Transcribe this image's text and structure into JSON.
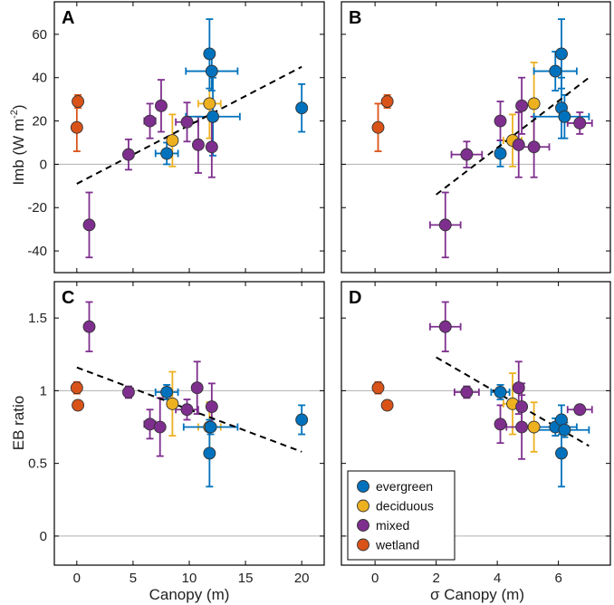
{
  "colors": {
    "evergreen": "#0072BD",
    "deciduous": "#EDB120",
    "mixed": "#7E2F8E",
    "wetland": "#D95319",
    "fit": "#000000",
    "ref": "#b0b0b0"
  },
  "legend": {
    "placement": "bottom-left of panel D",
    "entries": [
      {
        "key": "evergreen",
        "label": "evergreen"
      },
      {
        "key": "deciduous",
        "label": "deciduous"
      },
      {
        "key": "mixed",
        "label": "mixed"
      },
      {
        "key": "wetland",
        "label": "wetland"
      }
    ]
  },
  "chart_data": [
    {
      "panel": "A",
      "type": "scatter",
      "xlim": [
        -2,
        22
      ],
      "ylim": [
        -50,
        75
      ],
      "xticks": [
        0,
        5,
        10,
        15,
        20
      ],
      "yticks": [
        -40,
        -20,
        0,
        20,
        40,
        60
      ],
      "ytick_labels": [
        "-40",
        "-20",
        "0",
        "20",
        "40",
        "60"
      ],
      "xlabel": "",
      "ylabel_main": "Imb (W m",
      "ylabel_sup": "-2",
      "ylabel_end": ")",
      "ref_line": 0,
      "fit_line": [
        [
          0,
          -9
        ],
        [
          20,
          45
        ]
      ],
      "points": [
        {
          "group": "wetland",
          "x": 0.1,
          "y": 29,
          "yerr": [
            3,
            3
          ]
        },
        {
          "group": "wetland",
          "x": 0.0,
          "y": 17,
          "yerr": [
            11,
            11
          ]
        },
        {
          "group": "mixed",
          "x": 1.1,
          "y": -28,
          "yerr": [
            15,
            15
          ]
        },
        {
          "group": "mixed",
          "x": 4.6,
          "y": 4.5,
          "yerr": [
            7,
            7
          ]
        },
        {
          "group": "mixed",
          "x": 6.5,
          "y": 20,
          "yerr": [
            8,
            8
          ],
          "xerr": [
            0.5,
            0.5
          ]
        },
        {
          "group": "mixed",
          "x": 7.5,
          "y": 27,
          "yerr": [
            12,
            12
          ]
        },
        {
          "group": "evergreen",
          "x": 8.0,
          "y": 5,
          "yerr": [
            5,
            5
          ],
          "xerr": [
            1,
            1
          ]
        },
        {
          "group": "deciduous",
          "x": 8.5,
          "y": 11,
          "yerr": [
            12,
            12
          ]
        },
        {
          "group": "mixed",
          "x": 9.8,
          "y": 19.5,
          "yerr": [
            9,
            9
          ],
          "xerr": [
            1,
            1
          ]
        },
        {
          "group": "mixed",
          "x": 10.8,
          "y": 9,
          "yerr": [
            13,
            13
          ]
        },
        {
          "group": "deciduous",
          "x": 11.8,
          "y": 28,
          "yerr": [
            16,
            16
          ],
          "xerr": [
            1,
            1
          ]
        },
        {
          "group": "evergreen",
          "x": 11.8,
          "y": 51,
          "yerr": [
            16,
            16
          ]
        },
        {
          "group": "evergreen",
          "x": 12.0,
          "y": 43,
          "yerr": [
            9,
            9
          ],
          "xerr": [
            2.3,
            2.3
          ]
        },
        {
          "group": "evergreen",
          "x": 12.1,
          "y": 22,
          "yerr": [
            18,
            18
          ],
          "xerr": [
            2.4,
            2.4
          ]
        },
        {
          "group": "mixed",
          "x": 12.0,
          "y": 8,
          "yerr": [
            14,
            14
          ]
        },
        {
          "group": "evergreen",
          "x": 20.0,
          "y": 26,
          "yerr": [
            11,
            11
          ]
        }
      ]
    },
    {
      "panel": "B",
      "type": "scatter",
      "xlim": [
        -1.1,
        7.7
      ],
      "ylim": [
        -50,
        75
      ],
      "xticks": [
        0,
        2,
        4,
        6
      ],
      "yticks": [
        -40,
        -20,
        0,
        20,
        40,
        60
      ],
      "ytick_labels": [],
      "xlabel": "",
      "ylabel_main": "",
      "ref_line": 0,
      "fit_line": [
        [
          2,
          -14
        ],
        [
          7,
          40
        ]
      ],
      "points": [
        {
          "group": "wetland",
          "x": 0.4,
          "y": 29,
          "yerr": [
            3,
            3
          ]
        },
        {
          "group": "wetland",
          "x": 0.1,
          "y": 17,
          "yerr": [
            11,
            11
          ]
        },
        {
          "group": "mixed",
          "x": 2.3,
          "y": -28,
          "yerr": [
            15,
            15
          ],
          "xerr": [
            0.5,
            0.5
          ]
        },
        {
          "group": "mixed",
          "x": 3.0,
          "y": 4.5,
          "yerr": [
            6,
            6
          ],
          "xerr": [
            0.5,
            0.5
          ]
        },
        {
          "group": "evergreen",
          "x": 4.1,
          "y": 5,
          "yerr": [
            6,
            6
          ]
        },
        {
          "group": "mixed",
          "x": 4.1,
          "y": 20,
          "yerr": [
            9,
            9
          ]
        },
        {
          "group": "deciduous",
          "x": 4.5,
          "y": 11,
          "yerr": [
            12,
            12
          ],
          "xerr": [
            0.3,
            0.3
          ]
        },
        {
          "group": "mixed",
          "x": 4.7,
          "y": 9,
          "yerr": [
            15,
            15
          ]
        },
        {
          "group": "mixed",
          "x": 4.8,
          "y": 27,
          "yerr": [
            13,
            13
          ]
        },
        {
          "group": "deciduous",
          "x": 5.2,
          "y": 28,
          "yerr": [
            19,
            19
          ]
        },
        {
          "group": "mixed",
          "x": 5.2,
          "y": 8,
          "yerr": [
            14,
            14
          ],
          "xerr": [
            0.5,
            0.5
          ]
        },
        {
          "group": "evergreen",
          "x": 5.9,
          "y": 43,
          "yerr": [
            9,
            9
          ],
          "xerr": [
            0.7,
            0.7
          ]
        },
        {
          "group": "evergreen",
          "x": 6.1,
          "y": 51,
          "yerr": [
            16,
            16
          ]
        },
        {
          "group": "evergreen",
          "x": 6.1,
          "y": 26,
          "yerr": [
            14,
            14
          ]
        },
        {
          "group": "evergreen",
          "x": 6.2,
          "y": 22,
          "yerr": [
            10,
            10
          ],
          "xerr": [
            1.0,
            0.8
          ]
        },
        {
          "group": "mixed",
          "x": 6.7,
          "y": 19,
          "yerr": [
            5,
            5
          ],
          "xerr": [
            0.4,
            0.4
          ]
        }
      ]
    },
    {
      "panel": "C",
      "type": "scatter",
      "xlim": [
        -2,
        22
      ],
      "ylim": [
        -0.2,
        1.75
      ],
      "xticks": [
        0,
        5,
        10,
        15,
        20
      ],
      "xtick_labels": [
        "0",
        "5",
        "10",
        "15",
        "20"
      ],
      "yticks": [
        0,
        0.5,
        1,
        1.5
      ],
      "ytick_labels": [
        "0",
        "0.5",
        "1",
        "1.5"
      ],
      "xlabel": "Canopy (m)",
      "ylabel_main": "EB ratio",
      "ref_lines": [
        0,
        1
      ],
      "fit_line": [
        [
          0,
          1.16
        ],
        [
          20,
          0.58
        ]
      ],
      "points": [
        {
          "group": "wetland",
          "x": 0.0,
          "y": 1.02,
          "yerr": [
            0.04,
            0.04
          ]
        },
        {
          "group": "wetland",
          "x": 0.1,
          "y": 0.9,
          "yerr": [
            0.03,
            0.03
          ]
        },
        {
          "group": "mixed",
          "x": 1.1,
          "y": 1.44,
          "yerr": [
            0.17,
            0.17
          ]
        },
        {
          "group": "mixed",
          "x": 4.6,
          "y": 0.99,
          "yerr": [
            0.04,
            0.04
          ]
        },
        {
          "group": "mixed",
          "x": 6.5,
          "y": 0.77,
          "yerr": [
            0.1,
            0.1
          ],
          "xerr": [
            0.5,
            0.5
          ]
        },
        {
          "group": "mixed",
          "x": 7.4,
          "y": 0.75,
          "yerr": [
            0.2,
            0.2
          ]
        },
        {
          "group": "evergreen",
          "x": 8.0,
          "y": 0.99,
          "yerr": [
            0.05,
            0.05
          ],
          "xerr": [
            1,
            1
          ]
        },
        {
          "group": "deciduous",
          "x": 8.5,
          "y": 0.91,
          "yerr": [
            0.22,
            0.22
          ]
        },
        {
          "group": "mixed",
          "x": 9.8,
          "y": 0.87,
          "yerr": [
            0.07,
            0.07
          ],
          "xerr": [
            1,
            1
          ]
        },
        {
          "group": "mixed",
          "x": 10.7,
          "y": 1.02,
          "yerr": [
            0.18,
            0.18
          ]
        },
        {
          "group": "deciduous",
          "x": 11.8,
          "y": 0.75,
          "yerr": [
            0.17,
            0.17
          ],
          "xerr": [
            1,
            1
          ]
        },
        {
          "group": "evergreen",
          "x": 11.8,
          "y": 0.57,
          "yerr": [
            0.23,
            0.23
          ]
        },
        {
          "group": "evergreen",
          "x": 11.9,
          "y": 0.75,
          "yerr": [
            0.05,
            0.05
          ],
          "xerr": [
            2.4,
            2.4
          ]
        },
        {
          "group": "mixed",
          "x": 12.0,
          "y": 0.89,
          "yerr": [
            0.16,
            0.16
          ]
        },
        {
          "group": "evergreen",
          "x": 20.0,
          "y": 0.8,
          "yerr": [
            0.1,
            0.1
          ]
        }
      ]
    },
    {
      "panel": "D",
      "type": "scatter",
      "xlim": [
        -1.1,
        7.7
      ],
      "ylim": [
        -0.2,
        1.75
      ],
      "xticks": [
        0,
        2,
        4,
        6
      ],
      "xtick_labels": [
        "0",
        "2",
        "4",
        "6"
      ],
      "yticks": [
        0,
        0.5,
        1,
        1.5
      ],
      "ytick_labels": [],
      "xlabel": "σ Canopy (m)",
      "ylabel_main": "",
      "ref_lines": [
        0,
        1
      ],
      "fit_line": [
        [
          2,
          1.23
        ],
        [
          7,
          0.62
        ]
      ],
      "points": [
        {
          "group": "wetland",
          "x": 0.1,
          "y": 1.02,
          "yerr": [
            0.04,
            0.04
          ]
        },
        {
          "group": "wetland",
          "x": 0.4,
          "y": 0.9,
          "yerr": [
            0.02,
            0.02
          ]
        },
        {
          "group": "mixed",
          "x": 2.3,
          "y": 1.44,
          "yerr": [
            0.17,
            0.17
          ],
          "xerr": [
            0.5,
            0.5
          ]
        },
        {
          "group": "mixed",
          "x": 3.0,
          "y": 0.99,
          "yerr": [
            0.04,
            0.04
          ],
          "xerr": [
            0.4,
            0.4
          ]
        },
        {
          "group": "evergreen",
          "x": 4.1,
          "y": 0.99,
          "yerr": [
            0.05,
            0.05
          ],
          "xerr": [
            0.3,
            0.3
          ]
        },
        {
          "group": "mixed",
          "x": 4.1,
          "y": 0.77,
          "yerr": [
            0.13,
            0.13
          ]
        },
        {
          "group": "deciduous",
          "x": 4.5,
          "y": 0.91,
          "yerr": [
            0.21,
            0.21
          ],
          "xerr": [
            0.3,
            0.3
          ]
        },
        {
          "group": "mixed",
          "x": 4.7,
          "y": 1.02,
          "yerr": [
            0.18,
            0.18
          ]
        },
        {
          "group": "mixed",
          "x": 4.8,
          "y": 0.89,
          "yerr": [
            0.16,
            0.16
          ]
        },
        {
          "group": "mixed",
          "x": 4.8,
          "y": 0.75,
          "yerr": [
            0.22,
            0.22
          ],
          "xerr": [
            0.5,
            0.5
          ]
        },
        {
          "group": "deciduous",
          "x": 5.2,
          "y": 0.75,
          "yerr": [
            0.17,
            0.17
          ]
        },
        {
          "group": "evergreen",
          "x": 5.9,
          "y": 0.75,
          "yerr": [
            0.06,
            0.06
          ],
          "xerr": [
            0.7,
            0.7
          ]
        },
        {
          "group": "evergreen",
          "x": 6.1,
          "y": 0.57,
          "yerr": [
            0.23,
            0.23
          ]
        },
        {
          "group": "evergreen",
          "x": 6.1,
          "y": 0.8,
          "yerr": [
            0.1,
            0.1
          ]
        },
        {
          "group": "evergreen",
          "x": 6.2,
          "y": 0.73,
          "yerr": [
            0.05,
            0.05
          ],
          "xerr": [
            1.0,
            0.8
          ]
        },
        {
          "group": "mixed",
          "x": 6.7,
          "y": 0.87,
          "yerr": [
            0.03,
            0.03
          ],
          "xerr": [
            0.4,
            0.4
          ]
        }
      ]
    }
  ]
}
